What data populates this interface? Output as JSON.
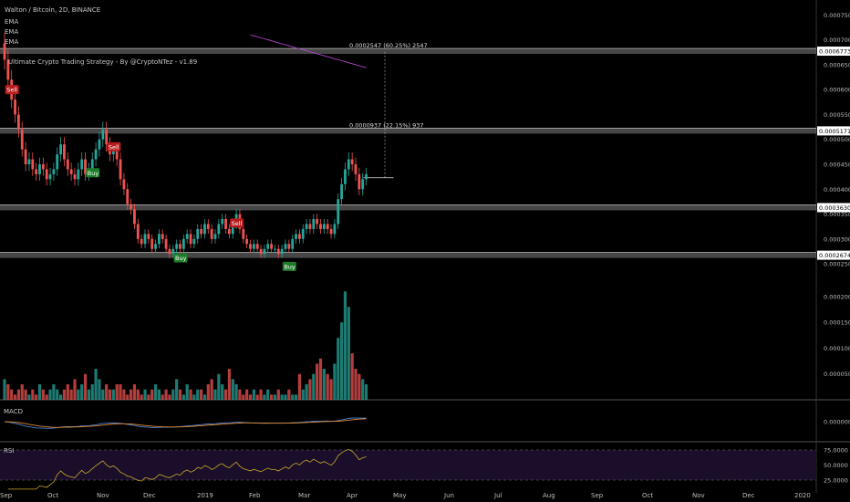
{
  "header": {
    "symbol": "Walton / Bitcoin, 2D, BINANCE",
    "ema_labels": [
      "EMA",
      "EMA",
      "EMA"
    ],
    "strategy": "Ultimate Crypto Trading Strategy - By @CryptoNTez - v1.89"
  },
  "panes": {
    "macd_label": "MACD",
    "rsi_label": "RSI"
  },
  "colors": {
    "up": "#26a69a",
    "down": "#ef5350",
    "ema_green": "#2ecc40",
    "ema_red": "#c0392b",
    "ema_purple": "#b044c8",
    "macd": "#4a7fd8",
    "signal": "#e08a2a",
    "rsi": "#c8a82a",
    "level_band": "#7f7f7f",
    "buy_bg": "#1e7d2a",
    "sell_bg": "#b71c1c"
  },
  "chart_data": {
    "type": "candlestick",
    "price_axis_ticks": [
      "0.0007500",
      "0.0007000",
      "0.0006500",
      "0.0006000",
      "0.0005500",
      "0.0005000",
      "0.0004500",
      "0.0004000",
      "0.0003500",
      "0.0003000",
      "0.0002500"
    ],
    "volume_axis_ticks": [
      "0.0002000",
      "0.0001500",
      "0.0001000",
      "0.0000500"
    ],
    "macd_axis_ticks": [
      "0.0000000"
    ],
    "rsi_axis_ticks": [
      "75.0000",
      "50.0000",
      "25.0000"
    ],
    "x_ticks": [
      "Sep",
      "Oct",
      "Nov",
      "Dec",
      "2019",
      "Feb",
      "Mar",
      "Apr",
      "May",
      "Jun",
      "Jul",
      "Aug",
      "Sep",
      "Oct",
      "Nov",
      "Dec",
      "2020"
    ],
    "price_ylim": [
      0.00023,
      0.00078
    ],
    "levels": [
      {
        "label": "0.0006773",
        "value": 0.0006773
      },
      {
        "label": "0.0005171",
        "value": 0.0005171
      },
      {
        "label": "0.0003630",
        "value": 0.000363
      },
      {
        "label": "0.0002674",
        "value": 0.0002674
      }
    ],
    "current_price": 0.000423,
    "annotations": [
      {
        "text": "0.0002547 (60.25%) 2547",
        "value": 0.000685
      },
      {
        "text": "0.0000937 (22.15%) 937",
        "value": 0.000524
      }
    ],
    "signals": [
      {
        "type": "Sell",
        "date_index": 2,
        "value": 0.0006
      },
      {
        "type": "Sell",
        "date_index": 31,
        "value": 0.000485
      },
      {
        "type": "Buy",
        "date_index": 25,
        "value": 0.000433
      },
      {
        "type": "Sell",
        "date_index": 66,
        "value": 0.000332
      },
      {
        "type": "Buy",
        "date_index": 50,
        "value": 0.000262
      },
      {
        "type": "Buy",
        "date_index": 81,
        "value": 0.000245
      }
    ],
    "closes": [
      0.00066,
      0.00062,
      0.00058,
      0.00055,
      0.00052,
      0.00048,
      0.00045,
      0.00046,
      0.00044,
      0.00043,
      0.00045,
      0.00044,
      0.00042,
      0.00043,
      0.00044,
      0.00047,
      0.00049,
      0.00046,
      0.00044,
      0.00043,
      0.00042,
      0.00044,
      0.00046,
      0.00043,
      0.00044,
      0.00046,
      0.00048,
      0.0005,
      0.00052,
      0.00049,
      0.00047,
      0.00048,
      0.00046,
      0.00042,
      0.0004,
      0.00037,
      0.00036,
      0.00033,
      0.0003,
      0.00029,
      0.00031,
      0.0003,
      0.00028,
      0.00029,
      0.00031,
      0.0003,
      0.00028,
      0.00027,
      0.00028,
      0.00029,
      0.00028,
      0.0003,
      0.00031,
      0.00029,
      0.0003,
      0.00032,
      0.00031,
      0.00033,
      0.00032,
      0.0003,
      0.00031,
      0.00033,
      0.00034,
      0.00032,
      0.00031,
      0.00033,
      0.00035,
      0.00032,
      0.0003,
      0.00029,
      0.00028,
      0.00029,
      0.00028,
      0.00027,
      0.00028,
      0.00029,
      0.00028,
      0.00028,
      0.00027,
      0.00028,
      0.00029,
      0.00028,
      0.0003,
      0.00031,
      0.0003,
      0.00032,
      0.00033,
      0.00032,
      0.00034,
      0.00033,
      0.00032,
      0.00033,
      0.00032,
      0.00031,
      0.00033,
      0.00038,
      0.00041,
      0.00044,
      0.00046,
      0.00045,
      0.00043,
      0.0004,
      0.00042,
      0.00043
    ],
    "volumes": [
      4e-05,
      3e-05,
      2e-05,
      1e-05,
      2e-05,
      3e-05,
      2e-05,
      1e-05,
      2e-05,
      1e-05,
      3e-05,
      2e-05,
      1e-05,
      2e-05,
      3e-05,
      2e-05,
      1e-05,
      2e-05,
      3e-05,
      2e-05,
      4e-05,
      2e-05,
      3e-05,
      5e-05,
      2e-05,
      3e-05,
      6e-05,
      4e-05,
      2e-05,
      3e-05,
      2e-05,
      2e-05,
      3e-05,
      3e-05,
      2e-05,
      1e-05,
      2e-05,
      3e-05,
      2e-05,
      1e-05,
      2e-05,
      1e-05,
      2e-05,
      3e-05,
      2e-05,
      1e-05,
      2e-05,
      1e-05,
      2e-05,
      4e-05,
      2e-05,
      1e-05,
      3e-05,
      2e-05,
      1e-05,
      2e-05,
      2e-05,
      1e-05,
      3e-05,
      4e-05,
      2e-05,
      5e-05,
      3e-05,
      2e-05,
      6e-05,
      4e-05,
      3e-05,
      2e-05,
      1e-05,
      2e-05,
      1e-05,
      2e-05,
      1e-05,
      2e-05,
      1e-05,
      2e-05,
      1e-05,
      1e-05,
      2e-05,
      1e-05,
      1e-05,
      2e-05,
      1e-05,
      1e-05,
      5e-05,
      2e-05,
      3e-05,
      4e-05,
      5e-05,
      7e-05,
      8e-05,
      6e-05,
      5e-05,
      4e-05,
      7e-05,
      0.00012,
      0.00015,
      0.00021,
      0.00018,
      9e-05,
      6e-05,
      5e-05,
      4e-05,
      3e-05
    ]
  }
}
